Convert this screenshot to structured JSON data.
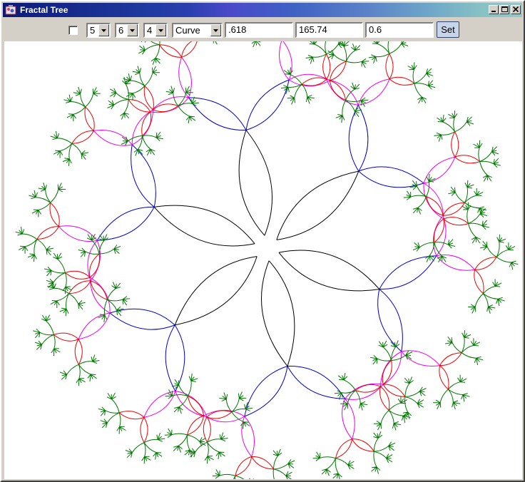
{
  "window": {
    "title": "Fractal Tree",
    "controls": [
      "minimize",
      "maximize",
      "close"
    ]
  },
  "toolbar": {
    "checkbox_checked": false,
    "selects": [
      {
        "name": "depth-select",
        "value": "5"
      },
      {
        "name": "branches-select",
        "value": "6"
      },
      {
        "name": "levels-select",
        "value": "4"
      },
      {
        "name": "style-select",
        "value": "Curve"
      }
    ],
    "fields": [
      {
        "name": "ratio-field",
        "value": ".618"
      },
      {
        "name": "angle-field",
        "value": "165.74"
      },
      {
        "name": "factor-field",
        "value": "0.6"
      }
    ],
    "set_label": "Set"
  },
  "colors": {
    "level_1": "#000000",
    "level_2": "#0000cc",
    "level_3": "#ee00ee",
    "level_4": "#ee0000",
    "leaves": "#007700",
    "background": "#ffffff"
  }
}
